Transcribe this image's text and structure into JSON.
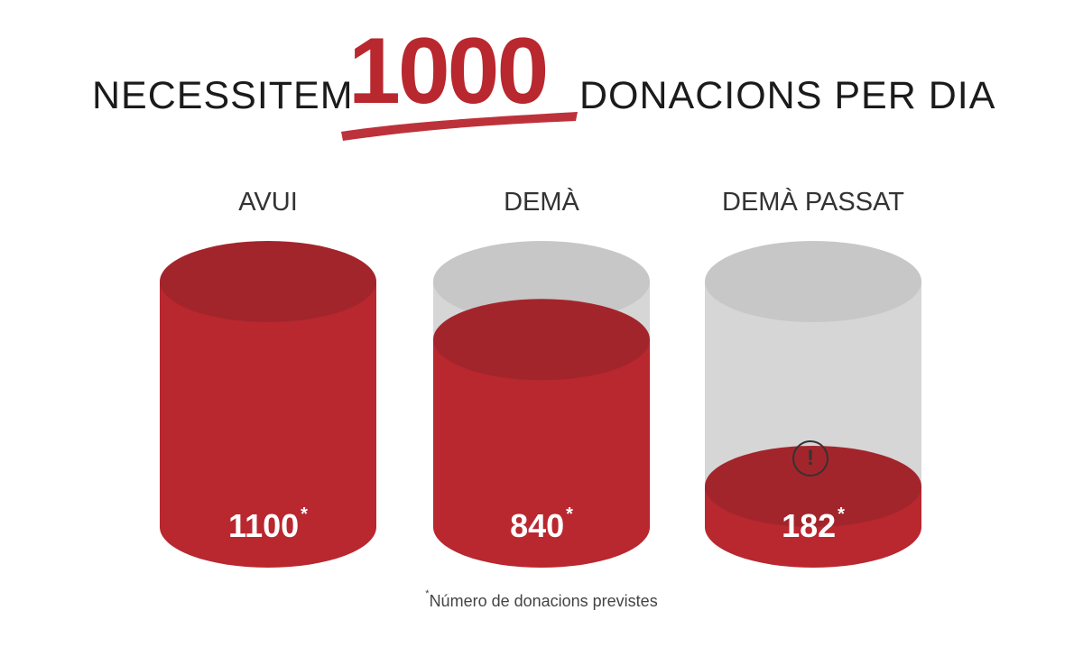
{
  "headline": {
    "before": "NECESSITEM",
    "number": "1000",
    "after": "DONACIONS PER DIA"
  },
  "colors": {
    "red": "#b9272f",
    "red_dark": "#a3252c",
    "gray": "#d6d6d6",
    "gray_dark": "#c7c7c7"
  },
  "chart_data": {
    "type": "bar",
    "categories": [
      "AVUI",
      "DEMÀ",
      "DEMÀ PASSAT"
    ],
    "values": [
      1100,
      840,
      182
    ],
    "value_labels": [
      "1100",
      "840",
      "182"
    ],
    "target": 1000,
    "asterisk": "*",
    "footnote": "Número de donacions previstes",
    "alert_icon": "exclamation-circle-icon",
    "alert_index": 2
  }
}
